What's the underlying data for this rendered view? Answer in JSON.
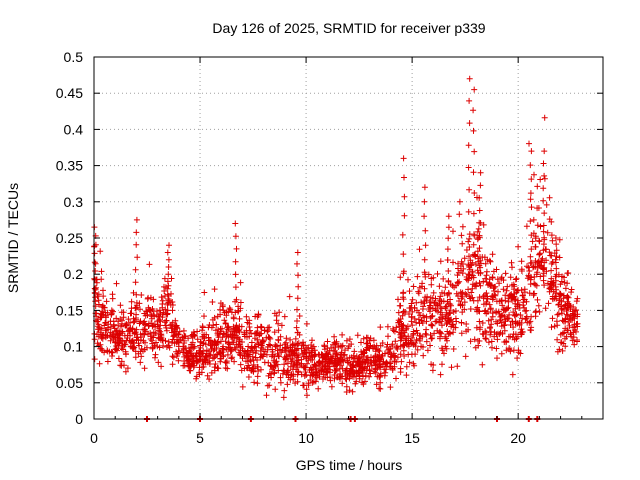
{
  "chart_data": {
    "type": "scatter",
    "title": "Day 126 of 2025, SRMTID for receiver p339",
    "xlabel": "GPS time / hours",
    "ylabel": "SRMTID / TECUs",
    "xlim": [
      0,
      24
    ],
    "ylim": [
      0,
      0.5
    ],
    "x_ticks": [
      0,
      5,
      10,
      15,
      20
    ],
    "x_tick_labels": [
      "0",
      "5",
      "10",
      "15",
      "20"
    ],
    "y_ticks": [
      0,
      0.05,
      0.1,
      0.15,
      0.2,
      0.25,
      0.3,
      0.35,
      0.4,
      0.45,
      0.5
    ],
    "y_tick_labels": [
      "0",
      "0.05",
      "0.1",
      "0.15",
      "0.2",
      "0.25",
      "0.3",
      "0.35",
      "0.4",
      "0.45",
      "0.5"
    ],
    "grid": true,
    "marker": "+",
    "color": "#dd0000",
    "envelope": {
      "hours": [
        0,
        0.25,
        0.5,
        1,
        1.5,
        2,
        2.5,
        3,
        3.5,
        4,
        4.5,
        5,
        5.5,
        6,
        6.5,
        7,
        7.5,
        8,
        8.5,
        9,
        9.5,
        10,
        10.5,
        11,
        11.5,
        12,
        12.5,
        13,
        13.5,
        14,
        14.5,
        15,
        15.5,
        16,
        16.5,
        17,
        17.5,
        18,
        18.5,
        19,
        19.5,
        20,
        20.5,
        21,
        21.5,
        22,
        22.5,
        22.8
      ],
      "median": [
        0.16,
        0.14,
        0.13,
        0.12,
        0.11,
        0.12,
        0.13,
        0.12,
        0.15,
        0.1,
        0.09,
        0.09,
        0.1,
        0.11,
        0.12,
        0.1,
        0.09,
        0.1,
        0.09,
        0.08,
        0.09,
        0.08,
        0.07,
        0.08,
        0.08,
        0.07,
        0.07,
        0.09,
        0.08,
        0.09,
        0.12,
        0.13,
        0.14,
        0.14,
        0.14,
        0.15,
        0.19,
        0.2,
        0.16,
        0.15,
        0.14,
        0.14,
        0.19,
        0.22,
        0.21,
        0.15,
        0.14,
        0.13
      ],
      "spread": [
        0.05,
        0.04,
        0.03,
        0.03,
        0.03,
        0.03,
        0.03,
        0.03,
        0.04,
        0.02,
        0.02,
        0.02,
        0.03,
        0.03,
        0.03,
        0.03,
        0.03,
        0.03,
        0.03,
        0.03,
        0.03,
        0.03,
        0.02,
        0.02,
        0.02,
        0.02,
        0.02,
        0.02,
        0.02,
        0.02,
        0.04,
        0.04,
        0.04,
        0.04,
        0.04,
        0.05,
        0.07,
        0.07,
        0.05,
        0.04,
        0.04,
        0.04,
        0.06,
        0.06,
        0.06,
        0.04,
        0.03,
        0.03
      ]
    },
    "peaks": [
      {
        "x": 0.05,
        "y": 0.265
      },
      {
        "x": 2.0,
        "y": 0.275
      },
      {
        "x": 3.5,
        "y": 0.24
      },
      {
        "x": 6.7,
        "y": 0.27
      },
      {
        "x": 9.6,
        "y": 0.23
      },
      {
        "x": 14.6,
        "y": 0.36
      },
      {
        "x": 15.6,
        "y": 0.32
      },
      {
        "x": 16.7,
        "y": 0.28
      },
      {
        "x": 17.7,
        "y": 0.47
      },
      {
        "x": 17.9,
        "y": 0.455
      },
      {
        "x": 18.2,
        "y": 0.34
      },
      {
        "x": 20.6,
        "y": 0.37
      },
      {
        "x": 21.2,
        "y": 0.37
      },
      {
        "x": 21.8,
        "y": 0.25
      }
    ],
    "zero_points": [
      2.5,
      5.0,
      7.4,
      9.5,
      12.1,
      12.3,
      19.0,
      20.5,
      20.9
    ],
    "point_count": 2300
  }
}
